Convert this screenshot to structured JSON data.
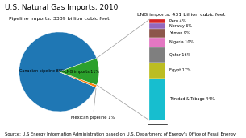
{
  "title": "U.S. Natural Gas Imports, 2010",
  "annotations": [
    "Source: U.S Energy Information Administration based on U.S. Department of Energy's Office of Fossil Energy"
  ],
  "chart_data": [
    {
      "type": "pie",
      "title": "Pipeline imports: 3389 billion cubic feet",
      "categories": [
        "Canadian pipeline 88%",
        "Mexican pipeline 1%",
        "LNG imports 11%"
      ],
      "values": [
        88,
        1,
        11
      ]
    },
    {
      "type": "bar",
      "stacked": true,
      "title": "LNG imports: 431 billion cubic feet",
      "categories": [
        null
      ],
      "series": [
        {
          "name": "Peru 4%",
          "values": [
            4
          ]
        },
        {
          "name": "Norway 6%",
          "values": [
            6
          ]
        },
        {
          "name": "Yemen 9%",
          "values": [
            9
          ]
        },
        {
          "name": "Nigeria 10%",
          "values": [
            10
          ]
        },
        {
          "name": "Qatar 16%",
          "values": [
            16
          ]
        },
        {
          "name": "Egypt 17%",
          "values": [
            17
          ]
        },
        {
          "name": "Trinidad & Tobago 44%",
          "values": [
            44
          ]
        }
      ],
      "ylim": [
        110,
        0
      ],
      "tick_labels": false
    }
  ]
}
